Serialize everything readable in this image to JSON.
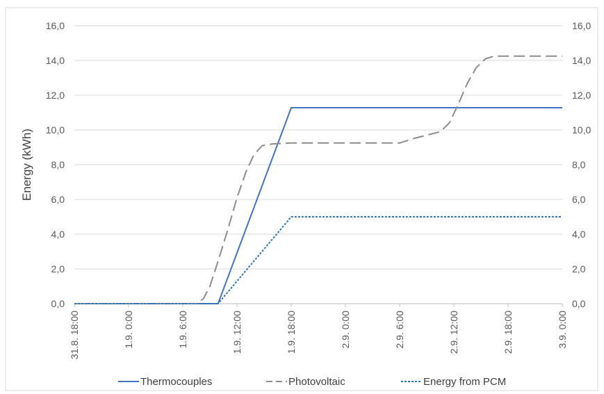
{
  "chart_data": {
    "type": "line",
    "ylabel": "Energy  (kWh)",
    "ylim": [
      0,
      16
    ],
    "y_ticks": [
      "0,0",
      "2,0",
      "4,0",
      "6,0",
      "8,0",
      "10,0",
      "12,0",
      "14,0",
      "16,0"
    ],
    "secondary_y_ticks": [
      "0,0",
      "2,0",
      "4,0",
      "6,0",
      "8,0",
      "10,0",
      "12,0",
      "14,0",
      "16,0"
    ],
    "x_ticks": [
      {
        "label": "31.8. 18:00",
        "hours": 0
      },
      {
        "label": "1.9. 0:00",
        "hours": 6
      },
      {
        "label": "1.9. 6:00",
        "hours": 12
      },
      {
        "label": "1.9. 12:00",
        "hours": 18
      },
      {
        "label": "1.9. 18:00",
        "hours": 24
      },
      {
        "label": "2.9. 0:00",
        "hours": 30
      },
      {
        "label": "2.9. 6:00",
        "hours": 36
      },
      {
        "label": "2.9. 12:00",
        "hours": 42
      },
      {
        "label": "2.9. 18:00",
        "hours": 48
      },
      {
        "label": "3.9. 0:00",
        "hours": 54
      }
    ],
    "grid": "horizontal",
    "legend_position": "bottom",
    "series": [
      {
        "name": "Thermocouples",
        "color": "#4472c4",
        "style": "solid",
        "points": [
          [
            0,
            0
          ],
          [
            15.9,
            0
          ],
          [
            24.0,
            11.28
          ],
          [
            54.0,
            11.28
          ]
        ]
      },
      {
        "name": "Photovoltaic",
        "color": "#8c8c8c",
        "style": "long-dash",
        "points": [
          [
            0,
            0
          ],
          [
            13.6,
            0
          ],
          [
            14.3,
            0.3
          ],
          [
            15.0,
            1.0
          ],
          [
            16.0,
            2.6
          ],
          [
            17.0,
            4.3
          ],
          [
            18.0,
            6.1
          ],
          [
            19.0,
            7.6
          ],
          [
            19.9,
            8.6
          ],
          [
            20.8,
            9.1
          ],
          [
            22.0,
            9.2
          ],
          [
            24.0,
            9.25
          ],
          [
            36.0,
            9.25
          ],
          [
            37.5,
            9.5
          ],
          [
            39.0,
            9.7
          ],
          [
            40.5,
            9.9
          ],
          [
            41.5,
            10.4
          ],
          [
            42.5,
            11.5
          ],
          [
            43.5,
            12.7
          ],
          [
            44.5,
            13.6
          ],
          [
            45.5,
            14.1
          ],
          [
            46.5,
            14.25
          ],
          [
            54.0,
            14.25
          ]
        ]
      },
      {
        "name": "Energy from PCM",
        "color": "#2e75b6",
        "style": "dotted",
        "points": [
          [
            0,
            0
          ],
          [
            15.9,
            0
          ],
          [
            24.0,
            5.0
          ],
          [
            54.0,
            5.0
          ]
        ]
      }
    ]
  }
}
